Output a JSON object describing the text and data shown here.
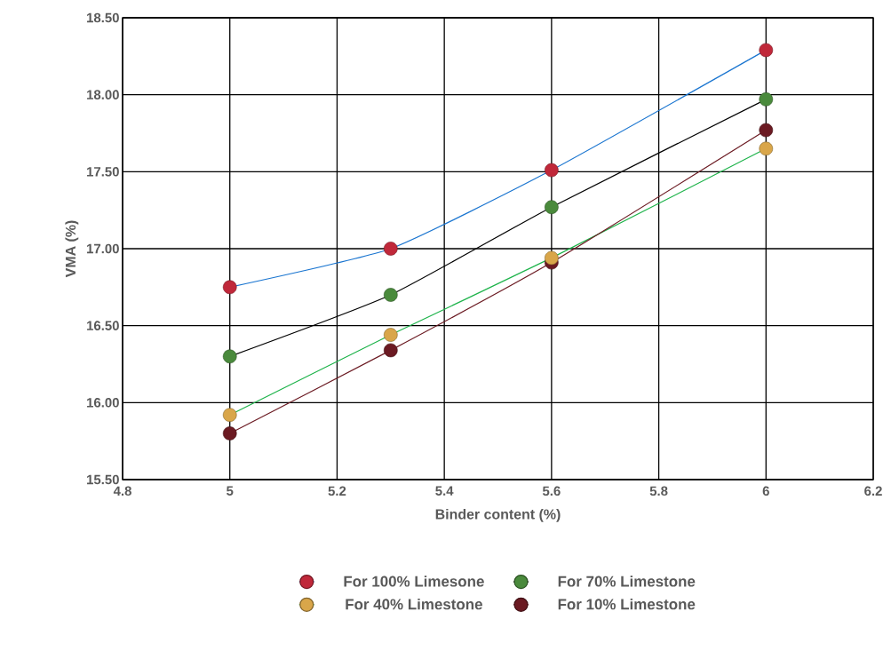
{
  "chart_data": {
    "type": "line",
    "xlabel": "Binder content (%)",
    "ylabel": "VMA (%)",
    "xlim": [
      4.8,
      6.2
    ],
    "xticks": [
      4.8,
      5,
      5.2,
      5.4,
      5.6,
      5.8,
      6,
      6.2
    ],
    "ylim": [
      15.5,
      18.5
    ],
    "yticks": [
      {
        "value": 15.5,
        "label": "15.50"
      },
      {
        "value": 16.0,
        "label": "16.00"
      },
      {
        "value": 16.5,
        "label": "16.50"
      },
      {
        "value": 17.0,
        "label": "17.00"
      },
      {
        "value": 17.5,
        "label": "17.50"
      },
      {
        "value": 18.0,
        "label": "18.00"
      },
      {
        "value": 18.5,
        "label": "18.50"
      }
    ],
    "x": [
      5,
      5.3,
      5.6,
      6
    ],
    "series": [
      {
        "name": "For 100% Limesone",
        "color": "#1a75d0",
        "colors": [
          "#c0283a",
          "#c0283a",
          "#c0283a",
          "#c0283a"
        ],
        "values": [
          16.75,
          17.0,
          17.51,
          18.29
        ]
      },
      {
        "name": "For 70% Limestone",
        "color": "#000000",
        "colors": [
          "#4a8a3c",
          "#4a8a3c",
          "#4a8a3c",
          "#4a8a3c"
        ],
        "values": [
          16.3,
          16.7,
          17.27,
          17.97
        ]
      },
      {
        "name": "For 40% Limestone",
        "color": "#1db34a",
        "colors": [
          "#d9a64a",
          "#d9a64a",
          "#d9a64a",
          "#d9a64a"
        ],
        "values": [
          15.92,
          16.44,
          16.94,
          17.65
        ]
      },
      {
        "name": "For 10% Limestone",
        "color": "#6b1a22",
        "colors": [
          "#6b1a22",
          "#6b1a22",
          "#6b1a22",
          "#6b1a22"
        ],
        "values": [
          15.8,
          16.34,
          16.91,
          17.77
        ]
      }
    ],
    "grid": true,
    "legend": "bottom",
    "marker": "circle",
    "line_style": "solid"
  }
}
